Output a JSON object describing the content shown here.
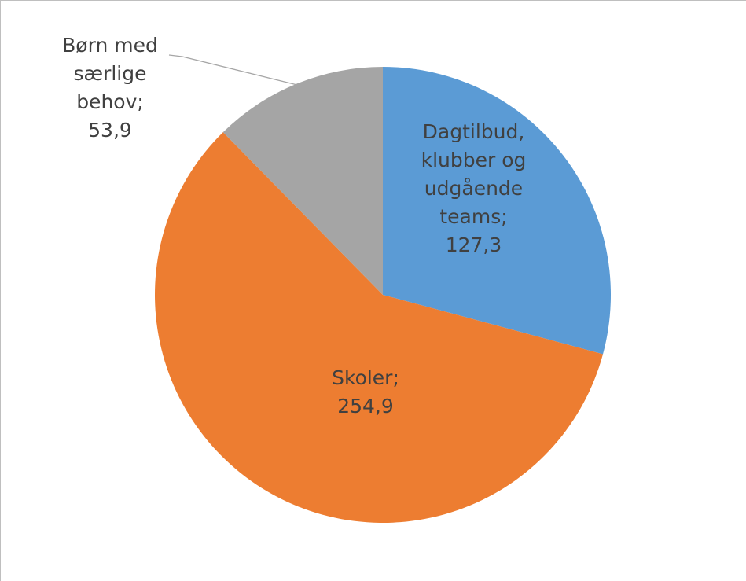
{
  "chart_data": {
    "type": "pie",
    "categories": [
      "Dagtilbud, klubber og udgående teams;",
      "Skoler;",
      "Børn med særlige behov;"
    ],
    "values": [
      127.3,
      254.9,
      53.9
    ],
    "value_labels": [
      "127,3",
      "254,9",
      "53,9"
    ],
    "colors": [
      "#5b9bd5",
      "#ed7d31",
      "#a5a5a5"
    ]
  }
}
